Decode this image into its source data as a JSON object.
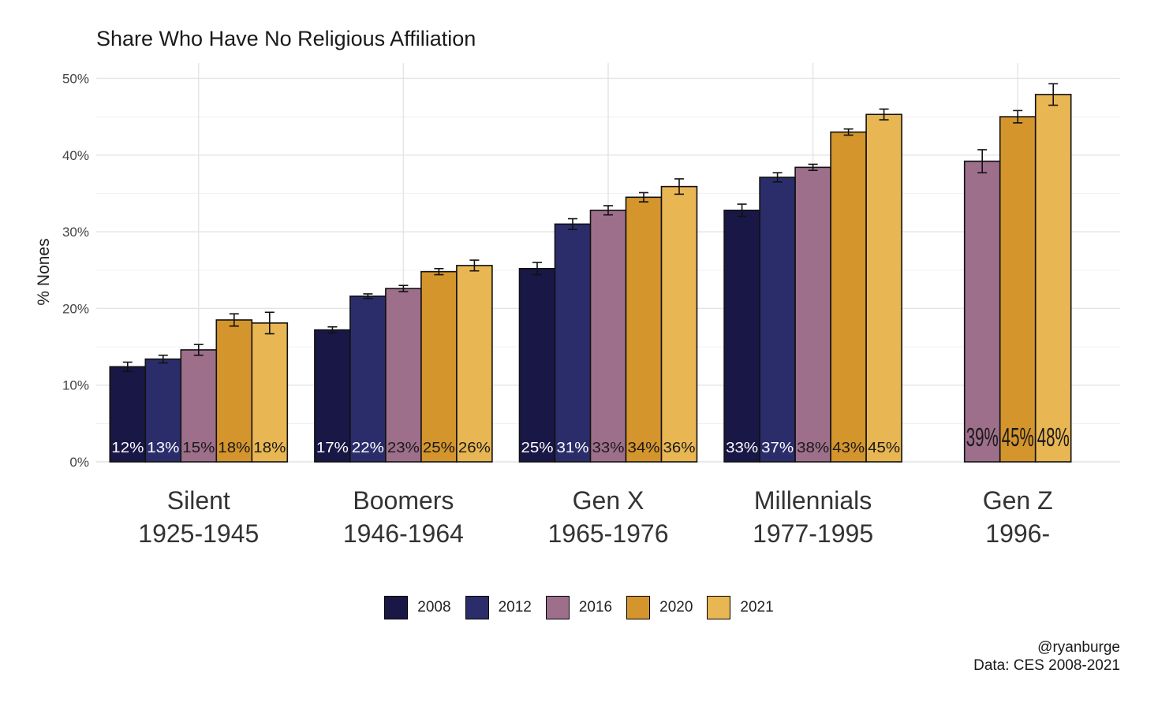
{
  "chart_data": {
    "type": "bar",
    "title": "Share Who Have No Religious Affiliation",
    "ylabel": "% Nones",
    "xlabel": "",
    "ylim": [
      0,
      52
    ],
    "yticks": [
      {
        "value": 0,
        "label": "0%"
      },
      {
        "value": 10,
        "label": "10%"
      },
      {
        "value": 20,
        "label": "20%"
      },
      {
        "value": 30,
        "label": "30%"
      },
      {
        "value": 40,
        "label": "40%"
      },
      {
        "value": 50,
        "label": "50%"
      }
    ],
    "categories": [
      {
        "name": "Silent",
        "years": "1925-1945"
      },
      {
        "name": "Boomers",
        "years": "1946-1964"
      },
      {
        "name": "Gen X",
        "years": "1965-1976"
      },
      {
        "name": "Millennials",
        "years": "1977-1995"
      },
      {
        "name": "Gen Z",
        "years": "1996-"
      }
    ],
    "series": [
      {
        "name": "2008",
        "color": "#191745",
        "label_color": "#ffffff",
        "values": [
          12.4,
          17.2,
          25.2,
          32.8,
          null
        ],
        "errors": [
          0.6,
          0.4,
          0.8,
          0.8,
          null
        ],
        "labels": [
          "12%",
          "17%",
          "25%",
          "33%",
          null
        ]
      },
      {
        "name": "2012",
        "color": "#2b2d6b",
        "label_color": "#ffffff",
        "values": [
          13.4,
          21.6,
          31.0,
          37.1,
          null
        ],
        "errors": [
          0.5,
          0.3,
          0.7,
          0.6,
          null
        ],
        "labels": [
          "13%",
          "22%",
          "31%",
          "37%",
          null
        ]
      },
      {
        "name": "2016",
        "color": "#9e6f8b",
        "label_color": "#1a1a1a",
        "values": [
          14.6,
          22.6,
          32.8,
          38.4,
          39.2
        ],
        "errors": [
          0.7,
          0.4,
          0.6,
          0.4,
          1.5
        ],
        "labels": [
          "15%",
          "23%",
          "33%",
          "38%",
          "39%"
        ]
      },
      {
        "name": "2020",
        "color": "#d4952c",
        "label_color": "#1a1a1a",
        "values": [
          18.5,
          24.8,
          34.5,
          43.0,
          45.0
        ],
        "errors": [
          0.8,
          0.4,
          0.6,
          0.4,
          0.8
        ],
        "labels": [
          "18%",
          "25%",
          "34%",
          "43%",
          "45%"
        ]
      },
      {
        "name": "2021",
        "color": "#e8b653",
        "label_color": "#1a1a1a",
        "values": [
          18.1,
          25.6,
          35.9,
          45.3,
          47.9
        ],
        "errors": [
          1.4,
          0.7,
          1.0,
          0.7,
          1.4
        ],
        "labels": [
          "18%",
          "26%",
          "36%",
          "45%",
          "48%"
        ]
      }
    ],
    "legend_position": "bottom",
    "grid": true
  },
  "caption": {
    "credit": "@ryanburge",
    "source": "Data: CES 2008-2021"
  }
}
